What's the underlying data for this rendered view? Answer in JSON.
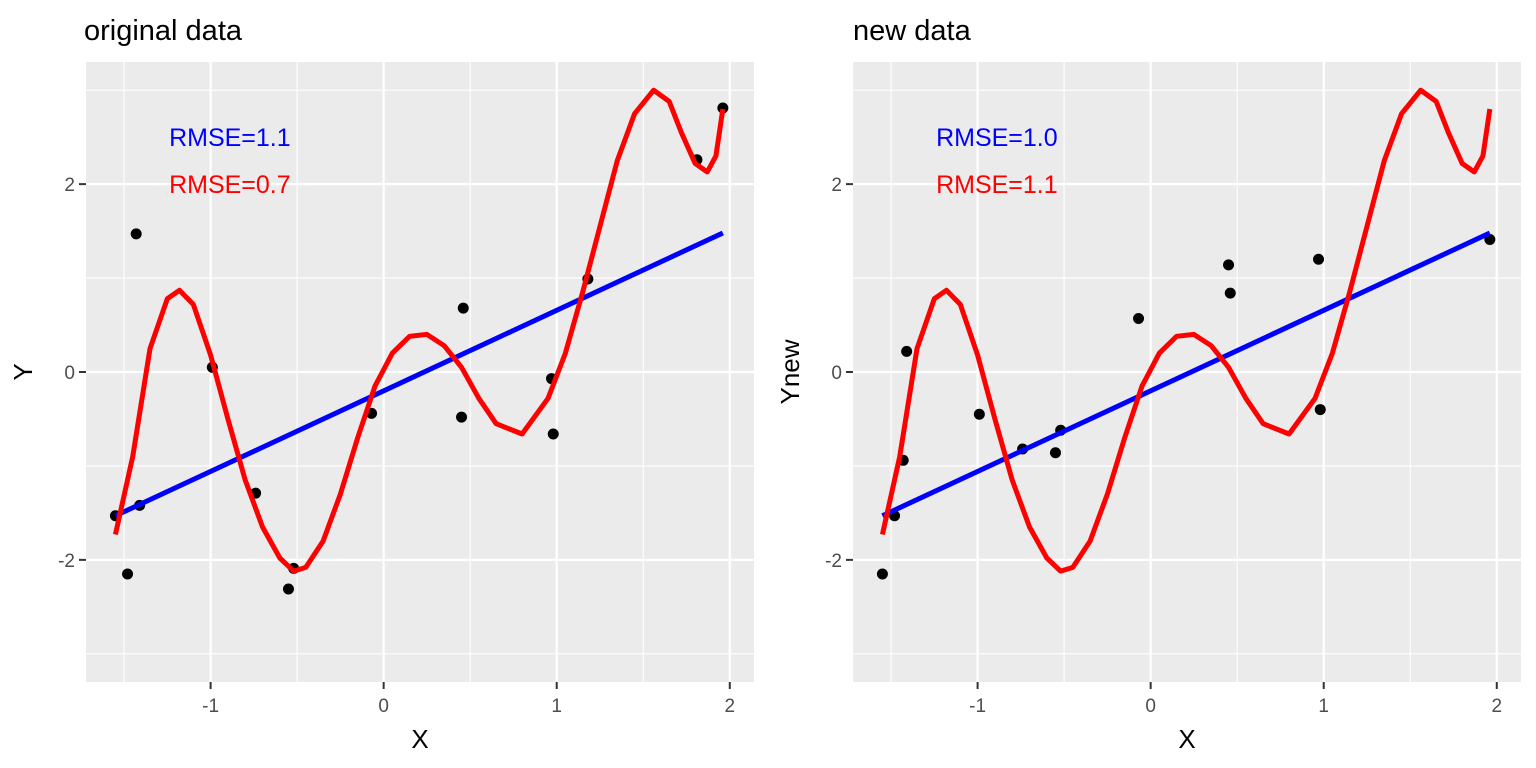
{
  "colors": {
    "linear": "#0000ff",
    "poly": "#ff0000",
    "points": "#000000",
    "panel": "#ebebeb",
    "grid": "#ffffff"
  },
  "chart_data": [
    {
      "type": "scatter",
      "title": "original data",
      "xlabel": "X",
      "ylabel": "Y",
      "xlim": [
        -1.72,
        2.14
      ],
      "ylim": [
        -3.3,
        3.3
      ],
      "x_ticks": [
        -1,
        0,
        1,
        2
      ],
      "y_ticks": [
        -2,
        0,
        2
      ],
      "x_tick_labels": [
        "-1",
        "0",
        "1",
        "2"
      ],
      "y_tick_labels": [
        "-2",
        "0",
        "2"
      ],
      "grid": true,
      "annotations": [
        {
          "text": "RMSE=1.1",
          "color": "#0000ff",
          "x": -1.24,
          "y": 2.5
        },
        {
          "text": "RMSE=0.7",
          "color": "#ff0000",
          "x": -1.24,
          "y": 2.0
        }
      ],
      "points": {
        "x": [
          -1.55,
          -1.48,
          -1.43,
          -1.41,
          -0.99,
          -0.74,
          -0.55,
          -0.52,
          -0.07,
          0.45,
          0.46,
          0.97,
          0.98,
          1.18,
          1.81,
          1.96
        ],
        "y": [
          -1.53,
          -2.15,
          1.47,
          -1.42,
          0.05,
          -1.29,
          -2.31,
          -2.09,
          -0.44,
          -0.48,
          0.68,
          -0.07,
          -0.66,
          0.99,
          2.26,
          2.81
        ]
      },
      "series": [
        {
          "kind": "linear-fit",
          "color": "#0000ff",
          "x": [
            -1.55,
            1.96
          ],
          "y": [
            -1.53,
            1.48
          ]
        },
        {
          "kind": "polynomial-fit",
          "color": "#ff0000",
          "x": [
            -1.55,
            -1.45,
            -1.35,
            -1.25,
            -1.18,
            -1.1,
            -1.0,
            -0.9,
            -0.8,
            -0.7,
            -0.6,
            -0.52,
            -0.45,
            -0.35,
            -0.25,
            -0.15,
            -0.05,
            0.05,
            0.15,
            0.25,
            0.35,
            0.45,
            0.55,
            0.65,
            0.8,
            0.95,
            1.05,
            1.15,
            1.25,
            1.35,
            1.45,
            1.56,
            1.65,
            1.72,
            1.8,
            1.87,
            1.92,
            1.96
          ],
          "y": [
            -1.73,
            -0.9,
            0.25,
            0.78,
            0.87,
            0.72,
            0.18,
            -0.5,
            -1.15,
            -1.65,
            -1.98,
            -2.12,
            -2.08,
            -1.8,
            -1.3,
            -0.7,
            -0.15,
            0.2,
            0.38,
            0.4,
            0.28,
            0.05,
            -0.28,
            -0.55,
            -0.66,
            -0.28,
            0.2,
            0.85,
            1.55,
            2.25,
            2.75,
            3.0,
            2.88,
            2.55,
            2.22,
            2.13,
            2.3,
            2.8
          ]
        }
      ]
    },
    {
      "type": "scatter",
      "title": "new data",
      "xlabel": "X",
      "ylabel": "Ynew",
      "xlim": [
        -1.72,
        2.14
      ],
      "ylim": [
        -3.3,
        3.3
      ],
      "x_ticks": [
        -1,
        0,
        1,
        2
      ],
      "y_ticks": [
        -2,
        0,
        2
      ],
      "x_tick_labels": [
        "-1",
        "0",
        "1",
        "2"
      ],
      "y_tick_labels": [
        "-2",
        "0",
        "2"
      ],
      "grid": true,
      "annotations": [
        {
          "text": "RMSE=1.0",
          "color": "#0000ff",
          "x": -1.24,
          "y": 2.5
        },
        {
          "text": "RMSE=1.1",
          "color": "#ff0000",
          "x": -1.24,
          "y": 2.0
        }
      ],
      "points": {
        "x": [
          -1.55,
          -1.48,
          -1.43,
          -1.41,
          -0.99,
          -0.74,
          -0.55,
          -0.52,
          -0.07,
          0.45,
          0.46,
          0.97,
          0.98,
          1.96
        ],
        "y": [
          -2.15,
          -1.53,
          -0.94,
          0.22,
          -0.45,
          -0.82,
          -0.86,
          -0.62,
          0.57,
          1.14,
          0.84,
          1.2,
          -0.4,
          1.41
        ]
      },
      "series": [
        {
          "kind": "linear-fit",
          "color": "#0000ff",
          "x": [
            -1.55,
            1.96
          ],
          "y": [
            -1.53,
            1.48
          ]
        },
        {
          "kind": "polynomial-fit",
          "color": "#ff0000",
          "x": [
            -1.55,
            -1.45,
            -1.35,
            -1.25,
            -1.18,
            -1.1,
            -1.0,
            -0.9,
            -0.8,
            -0.7,
            -0.6,
            -0.52,
            -0.45,
            -0.35,
            -0.25,
            -0.15,
            -0.05,
            0.05,
            0.15,
            0.25,
            0.35,
            0.45,
            0.55,
            0.65,
            0.8,
            0.95,
            1.05,
            1.15,
            1.25,
            1.35,
            1.45,
            1.56,
            1.65,
            1.72,
            1.8,
            1.87,
            1.92,
            1.96
          ],
          "y": [
            -1.73,
            -0.9,
            0.25,
            0.78,
            0.87,
            0.72,
            0.18,
            -0.5,
            -1.15,
            -1.65,
            -1.98,
            -2.12,
            -2.08,
            -1.8,
            -1.3,
            -0.7,
            -0.15,
            0.2,
            0.38,
            0.4,
            0.28,
            0.05,
            -0.28,
            -0.55,
            -0.66,
            -0.28,
            0.2,
            0.85,
            1.55,
            2.25,
            2.75,
            3.0,
            2.88,
            2.55,
            2.22,
            2.13,
            2.3,
            2.8
          ]
        }
      ]
    }
  ]
}
